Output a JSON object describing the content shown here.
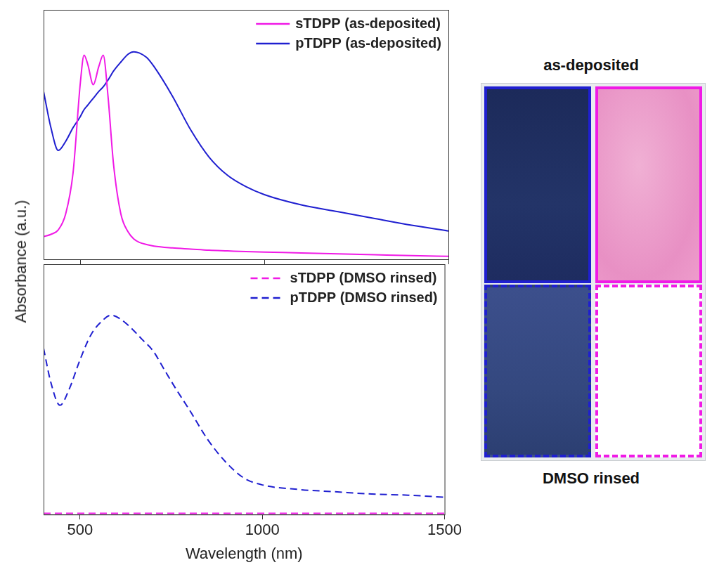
{
  "ylabel": "Absorbance (a.u.)",
  "photo": {
    "top_label": "as-deposited",
    "bottom_label": "DMSO rinsed"
  },
  "chart_data": [
    {
      "type": "line",
      "x": [
        400,
        420,
        440,
        460,
        480,
        500,
        510,
        520,
        535,
        550,
        562,
        575,
        590,
        610,
        630,
        645,
        660,
        680,
        700,
        750,
        800,
        850,
        900,
        950,
        1000,
        1100,
        1200,
        1300,
        1400,
        1500
      ],
      "series": [
        {
          "name": "sTDPP (as-deposited)",
          "color": "#f01ae6",
          "line_style": "solid",
          "values": [
            0.1,
            0.11,
            0.13,
            0.2,
            0.38,
            0.78,
            0.9,
            0.86,
            0.77,
            0.85,
            0.9,
            0.72,
            0.42,
            0.2,
            0.12,
            0.09,
            0.075,
            0.065,
            0.058,
            0.05,
            0.045,
            0.04,
            0.037,
            0.034,
            0.032,
            0.028,
            0.024,
            0.02,
            0.016,
            0.013
          ]
        },
        {
          "name": "pTDPP (as-deposited)",
          "color": "#1f1fd0",
          "line_style": "solid",
          "values": [
            0.74,
            0.58,
            0.48,
            0.52,
            0.58,
            0.63,
            0.66,
            0.68,
            0.71,
            0.74,
            0.76,
            0.79,
            0.83,
            0.87,
            0.905,
            0.915,
            0.91,
            0.89,
            0.85,
            0.72,
            0.57,
            0.45,
            0.37,
            0.32,
            0.285,
            0.24,
            0.21,
            0.18,
            0.15,
            0.125
          ]
        }
      ],
      "xlim": [
        400,
        1500
      ],
      "xticks": [
        500,
        1000,
        1500
      ],
      "ylim": [
        0,
        1.1
      ],
      "tick_labels": false,
      "legend": "upper right",
      "grid": false
    },
    {
      "type": "line",
      "x": [
        400,
        420,
        445,
        470,
        500,
        530,
        560,
        585,
        610,
        640,
        670,
        700,
        730,
        760,
        800,
        850,
        900,
        950,
        1000,
        1100,
        1200,
        1300,
        1400,
        1500
      ],
      "series": [
        {
          "name": "sTDPP (DMSO rinsed)",
          "color": "#f01ae6",
          "line_style": "dashed",
          "values": [
            0.005,
            0.005,
            0.005,
            0.005,
            0.005,
            0.005,
            0.005,
            0.005,
            0.005,
            0.005,
            0.005,
            0.005,
            0.005,
            0.005,
            0.005,
            0.005,
            0.005,
            0.005,
            0.005,
            0.005,
            0.005,
            0.005,
            0.005,
            0.005
          ]
        },
        {
          "name": "pTDPP (DMSO rinsed)",
          "color": "#1f1fd0",
          "line_style": "dashed",
          "values": [
            0.73,
            0.58,
            0.48,
            0.55,
            0.68,
            0.79,
            0.85,
            0.876,
            0.86,
            0.82,
            0.77,
            0.72,
            0.64,
            0.56,
            0.46,
            0.33,
            0.23,
            0.16,
            0.13,
            0.11,
            0.1,
            0.09,
            0.085,
            0.076
          ]
        }
      ],
      "xlim": [
        400,
        1500
      ],
      "xticks": [
        500,
        1000,
        1500
      ],
      "ylim": [
        0,
        1.1
      ],
      "xlabel": "Wavelength (nm)",
      "tick_labels": "x",
      "legend": "upper right",
      "grid": false
    }
  ]
}
